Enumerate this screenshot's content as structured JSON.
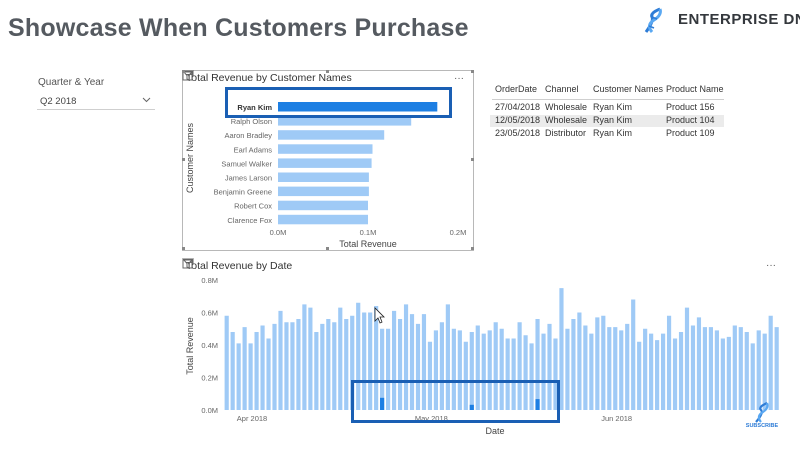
{
  "page": {
    "title": "Showcase When Customers Purchase",
    "logo_text": "ENTERPRISE DNA",
    "subscribe_text": "SUBSCRIBE"
  },
  "slicer": {
    "label": "Quarter & Year",
    "selected": "Q2 2018"
  },
  "bar_visual": {
    "title": "Total Revenue by Customer Names",
    "more_label": "···"
  },
  "table": {
    "headers": [
      "OrderDate",
      "Channel",
      "Customer Names",
      "Product Name"
    ],
    "rows": [
      [
        "27/04/2018",
        "Wholesale",
        "Ryan Kim",
        "Product 156"
      ],
      [
        "12/05/2018",
        "Wholesale",
        "Ryan Kim",
        "Product 104"
      ],
      [
        "23/05/2018",
        "Distributor",
        "Ryan Kim",
        "Product 109"
      ]
    ]
  },
  "date_visual": {
    "title": "Total Revenue by Date",
    "more_label": "···"
  },
  "colors": {
    "bar_default": "#9fcaf6",
    "bar_selected": "#1d7fe3",
    "highlight_border": "#1a5fb4",
    "axis_text": "#666666"
  },
  "chart_data": [
    {
      "type": "bar",
      "orientation": "horizontal",
      "title": "Total Revenue by Customer Names",
      "xlabel": "Total Revenue",
      "ylabel": "Customer Names",
      "categories": [
        "Ryan Kim",
        "Ralph Olson",
        "Aaron Bradley",
        "Earl Adams",
        "Samuel Walker",
        "James Larson",
        "Benjamin Greene",
        "Robert Cox",
        "Clarence Fox"
      ],
      "values": [
        0.177,
        0.148,
        0.118,
        0.105,
        0.104,
        0.101,
        0.101,
        0.1,
        0.1
      ],
      "selected_index": 0,
      "xlim": [
        0,
        0.2
      ],
      "xticks": [
        "0.0M",
        "0.1M",
        "0.2M"
      ],
      "unit": "M"
    },
    {
      "type": "bar",
      "title": "Total Revenue by Date",
      "xlabel": "Date",
      "ylabel": "Total Revenue",
      "ylim": [
        0,
        0.8
      ],
      "yticks": [
        "0.0M",
        "0.2M",
        "0.4M",
        "0.6M",
        "0.8M"
      ],
      "x_range": [
        "2018-04-01",
        "2018-06-30"
      ],
      "xtick_labels": [
        "Apr 2018",
        "May 2018",
        "Jun 2018"
      ],
      "unit": "M",
      "values": [
        0.58,
        0.48,
        0.41,
        0.51,
        0.41,
        0.48,
        0.52,
        0.44,
        0.53,
        0.61,
        0.54,
        0.54,
        0.56,
        0.65,
        0.63,
        0.48,
        0.53,
        0.56,
        0.54,
        0.63,
        0.56,
        0.58,
        0.66,
        0.6,
        0.6,
        0.64,
        0.5,
        0.5,
        0.61,
        0.56,
        0.65,
        0.59,
        0.53,
        0.59,
        0.42,
        0.49,
        0.54,
        0.65,
        0.5,
        0.49,
        0.42,
        0.48,
        0.52,
        0.47,
        0.49,
        0.54,
        0.5,
        0.44,
        0.44,
        0.54,
        0.46,
        0.41,
        0.56,
        0.47,
        0.53,
        0.44,
        0.75,
        0.5,
        0.56,
        0.6,
        0.52,
        0.47,
        0.57,
        0.58,
        0.51,
        0.51,
        0.49,
        0.53,
        0.68,
        0.42,
        0.5,
        0.47,
        0.43,
        0.47,
        0.58,
        0.44,
        0.48,
        0.63,
        0.52,
        0.57,
        0.51,
        0.51,
        0.49,
        0.44,
        0.45,
        0.52,
        0.51,
        0.48,
        0.41,
        0.49,
        0.47,
        0.58,
        0.51,
        0.5,
        0.6,
        0.51,
        0.5,
        0.53,
        0.62,
        0.52,
        0.48,
        0.36,
        0.55,
        0.61,
        0.56,
        0.42,
        0.49,
        0.38,
        0.38,
        0.44,
        0.41,
        0.47,
        0.43
      ],
      "selected_values": [
        {
          "date": "2018-04-27",
          "value": 0.075
        },
        {
          "date": "2018-05-12",
          "value": 0.032
        },
        {
          "date": "2018-05-23",
          "value": 0.067
        }
      ]
    }
  ]
}
